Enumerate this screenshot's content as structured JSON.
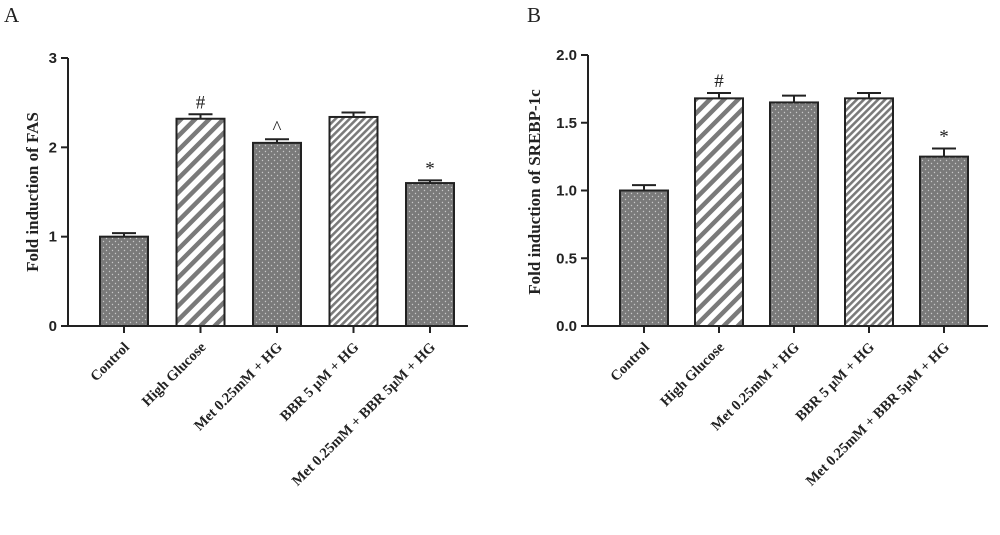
{
  "chart_data": [
    {
      "panel_label": "A",
      "type": "bar",
      "ylabel": "Fold induction of FAS",
      "xlabel": "",
      "ylim": [
        0,
        3
      ],
      "yticks": [
        "0",
        "1",
        "2",
        "3"
      ],
      "categories": [
        "Control",
        "High Glucose",
        "Met 0.25mM + HG",
        "BBR 5 μM + HG",
        "Met 0.25mM + BBR 5μM + HG"
      ],
      "values": [
        1.0,
        2.32,
        2.05,
        2.34,
        1.6
      ],
      "errors": [
        0.04,
        0.05,
        0.04,
        0.05,
        0.03
      ],
      "annotations": [
        "",
        "#",
        "^",
        "",
        "*"
      ],
      "patterns": [
        "dots",
        "stripes-wide",
        "dots",
        "stripes-fine",
        "dots"
      ]
    },
    {
      "panel_label": "B",
      "type": "bar",
      "ylabel": "Fold induction of SREBP-1c",
      "xlabel": "",
      "ylim": [
        0,
        2
      ],
      "yticks": [
        "0.0",
        "0.5",
        "1.0",
        "1.5",
        "2.0"
      ],
      "categories": [
        "Control",
        "High Glucose",
        "Met 0.25mM + HG",
        "BBR 5 μM + HG",
        "Met 0.25mM + BBR 5μM + HG"
      ],
      "values": [
        1.0,
        1.68,
        1.65,
        1.68,
        1.25
      ],
      "errors": [
        0.04,
        0.04,
        0.05,
        0.04,
        0.06
      ],
      "annotations": [
        "",
        "#",
        "",
        "",
        "*"
      ],
      "patterns": [
        "dots",
        "stripes-wide",
        "dots",
        "stripes-fine",
        "dots"
      ]
    }
  ],
  "colors": {
    "bar_fill": "#7a7a7a",
    "stripe_background": "#ffffff",
    "ink": "#222222"
  }
}
